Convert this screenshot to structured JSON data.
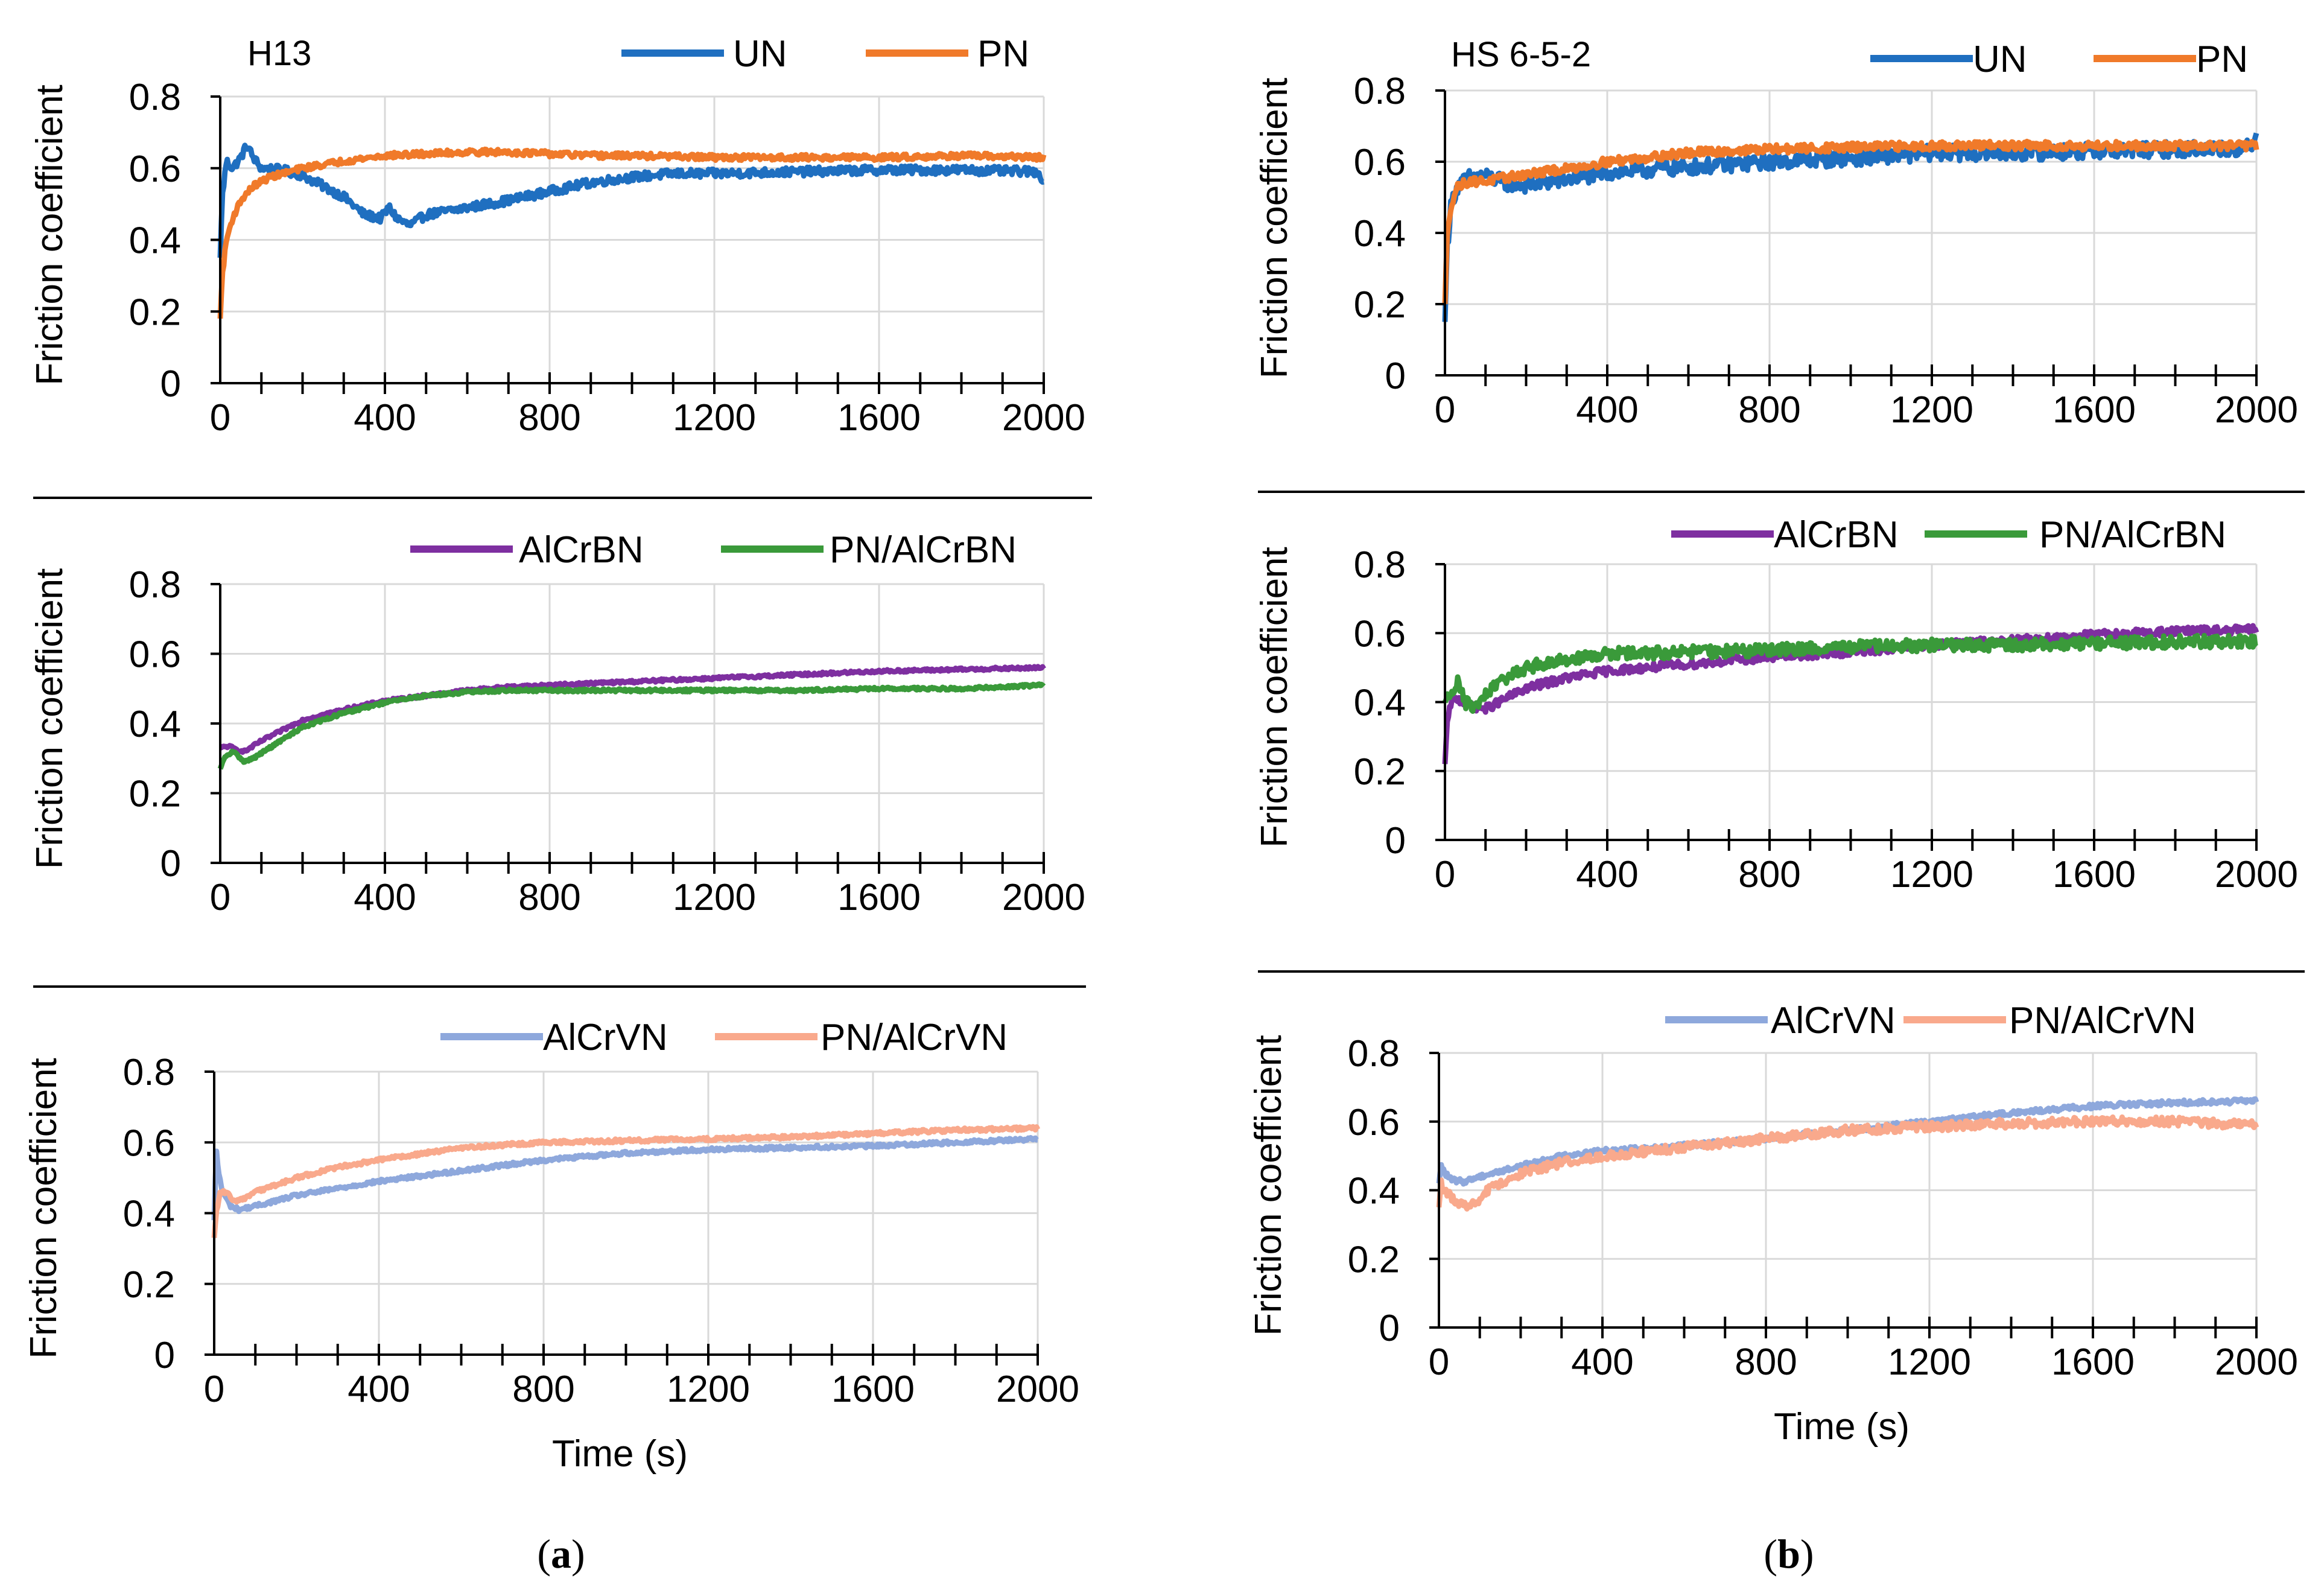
{
  "colors": {
    "UN": "#1f6fc0",
    "PN": "#f07a2a",
    "AlCrBN": "#7e2fa0",
    "PN/AlCrBN": "#3a9a3a",
    "AlCrVN": "#8ea8dc",
    "PN/AlCrVN": "#f9a98c",
    "grid": "#d9d9d9",
    "axis": "#000000"
  },
  "labels": {
    "panel_a_open": "(",
    "panel_a_letter": "a",
    "panel_a_close": ")",
    "panel_b_open": "(",
    "panel_b_letter": "b",
    "panel_b_close": ")"
  },
  "chart_data": [
    {
      "id": "a1",
      "type": "line",
      "title": "H13",
      "xlabel": "",
      "ylabel": "Friction coefficient",
      "xlim": [
        0,
        2000
      ],
      "ylim": [
        0,
        0.8
      ],
      "xticks": [
        "0",
        "400",
        "800",
        "1200",
        "1600",
        "2000"
      ],
      "yticks": [
        "0",
        "0.2",
        "0.4",
        "0.6",
        "0.8"
      ],
      "grid": true,
      "legend": "top-right",
      "series": [
        {
          "name": "UN",
          "noise": 0.012,
          "x": [
            0,
            5,
            15,
            30,
            50,
            65,
            80,
            100,
            150,
            200,
            250,
            300,
            350,
            390,
            410,
            430,
            460,
            500,
            600,
            700,
            800,
            900,
            1000,
            1100,
            1200,
            1400,
            1600,
            1800,
            1990,
            2000
          ],
          "y": [
            0.35,
            0.52,
            0.62,
            0.6,
            0.63,
            0.665,
            0.63,
            0.6,
            0.595,
            0.58,
            0.55,
            0.52,
            0.47,
            0.46,
            0.49,
            0.46,
            0.44,
            0.47,
            0.49,
            0.51,
            0.535,
            0.56,
            0.575,
            0.585,
            0.585,
            0.59,
            0.595,
            0.595,
            0.59,
            0.55
          ]
        },
        {
          "name": "PN",
          "noise": 0.008,
          "x": [
            0,
            5,
            15,
            30,
            50,
            80,
            120,
            200,
            300,
            400,
            500,
            600,
            700,
            800,
            900,
            1000,
            1200,
            1400,
            1600,
            1800,
            2000
          ],
          "y": [
            0.18,
            0.3,
            0.4,
            0.46,
            0.51,
            0.55,
            0.575,
            0.6,
            0.62,
            0.635,
            0.64,
            0.645,
            0.645,
            0.64,
            0.635,
            0.635,
            0.63,
            0.63,
            0.63,
            0.635,
            0.63
          ]
        }
      ]
    },
    {
      "id": "b1",
      "type": "line",
      "title": "HS 6-5-2",
      "xlabel": "",
      "ylabel": "Friction coefficient",
      "xlim": [
        0,
        2000
      ],
      "ylim": [
        0,
        0.8
      ],
      "xticks": [
        "0",
        "400",
        "800",
        "1200",
        "1600",
        "2000"
      ],
      "yticks": [
        "0",
        "0.2",
        "0.4",
        "0.6",
        "0.8"
      ],
      "grid": true,
      "legend": "top-right",
      "series": [
        {
          "name": "UN",
          "noise": 0.022,
          "x": [
            0,
            5,
            15,
            30,
            60,
            100,
            150,
            200,
            300,
            400,
            600,
            800,
            1000,
            1200,
            1400,
            1600,
            1800,
            1990,
            2000
          ],
          "y": [
            0.15,
            0.35,
            0.48,
            0.53,
            0.555,
            0.56,
            0.54,
            0.535,
            0.55,
            0.57,
            0.585,
            0.6,
            0.61,
            0.625,
            0.625,
            0.63,
            0.635,
            0.64,
            0.7
          ]
        },
        {
          "name": "PN",
          "noise": 0.012,
          "x": [
            0,
            5,
            15,
            30,
            60,
            100,
            200,
            300,
            400,
            600,
            800,
            1000,
            1200,
            1400,
            1600,
            1800,
            2000
          ],
          "y": [
            0.2,
            0.38,
            0.48,
            0.53,
            0.545,
            0.545,
            0.565,
            0.58,
            0.6,
            0.625,
            0.635,
            0.64,
            0.645,
            0.645,
            0.645,
            0.645,
            0.645
          ]
        }
      ]
    },
    {
      "id": "a2",
      "type": "line",
      "title": "",
      "xlabel": "",
      "ylabel": "Friction coefficient",
      "xlim": [
        0,
        2000
      ],
      "ylim": [
        0,
        0.8
      ],
      "xticks": [
        "0",
        "400",
        "800",
        "1200",
        "1600",
        "2000"
      ],
      "yticks": [
        "0",
        "0.2",
        "0.4",
        "0.6",
        "0.8"
      ],
      "grid": true,
      "legend": "top-right",
      "series": [
        {
          "name": "AlCrBN",
          "noise": 0.004,
          "x": [
            0,
            20,
            40,
            60,
            100,
            150,
            200,
            300,
            400,
            500,
            600,
            700,
            800,
            1000,
            1200,
            1400,
            1600,
            1800,
            2000
          ],
          "y": [
            0.33,
            0.335,
            0.325,
            0.32,
            0.35,
            0.38,
            0.41,
            0.44,
            0.465,
            0.48,
            0.495,
            0.505,
            0.51,
            0.52,
            0.53,
            0.54,
            0.55,
            0.555,
            0.56
          ]
        },
        {
          "name": "PN/AlCrBN",
          "noise": 0.004,
          "x": [
            0,
            10,
            30,
            60,
            80,
            120,
            200,
            300,
            400,
            500,
            600,
            700,
            800,
            1000,
            1200,
            1400,
            1600,
            1800,
            2000
          ],
          "y": [
            0.27,
            0.3,
            0.32,
            0.29,
            0.3,
            0.33,
            0.39,
            0.43,
            0.46,
            0.48,
            0.49,
            0.495,
            0.495,
            0.495,
            0.495,
            0.495,
            0.5,
            0.5,
            0.51
          ]
        }
      ]
    },
    {
      "id": "b2",
      "type": "line",
      "title": "",
      "xlabel": "",
      "ylabel": "Friction coefficient",
      "xlim": [
        0,
        2000
      ],
      "ylim": [
        0,
        0.8
      ],
      "xticks": [
        "0",
        "400",
        "800",
        "1200",
        "1600",
        "2000"
      ],
      "yticks": [
        "0",
        "0.2",
        "0.4",
        "0.6",
        "0.8"
      ],
      "grid": true,
      "legend": "top-right",
      "series": [
        {
          "name": "AlCrBN",
          "noise": 0.012,
          "x": [
            0,
            5,
            15,
            30,
            60,
            100,
            150,
            200,
            300,
            400,
            600,
            800,
            1000,
            1200,
            1400,
            1600,
            1800,
            2000
          ],
          "y": [
            0.22,
            0.33,
            0.4,
            0.41,
            0.39,
            0.38,
            0.41,
            0.44,
            0.47,
            0.49,
            0.51,
            0.53,
            0.545,
            0.565,
            0.58,
            0.595,
            0.605,
            0.61
          ]
        },
        {
          "name": "PN/AlCrBN",
          "noise": 0.018,
          "x": [
            0,
            10,
            30,
            50,
            70,
            100,
            150,
            200,
            300,
            400,
            600,
            800,
            1000,
            1200,
            1400,
            1600,
            1800,
            2000
          ],
          "y": [
            0.4,
            0.42,
            0.46,
            0.4,
            0.38,
            0.42,
            0.47,
            0.5,
            0.525,
            0.54,
            0.545,
            0.55,
            0.56,
            0.565,
            0.565,
            0.57,
            0.575,
            0.575
          ]
        }
      ]
    },
    {
      "id": "a3",
      "type": "line",
      "title": "",
      "xlabel": "Time (s)",
      "ylabel": "Friction coefficient",
      "xlim": [
        0,
        2000
      ],
      "ylim": [
        0,
        0.8
      ],
      "xticks": [
        "0",
        "400",
        "800",
        "1200",
        "1600",
        "2000"
      ],
      "yticks": [
        "0",
        "0.2",
        "0.4",
        "0.6",
        "0.8"
      ],
      "grid": true,
      "legend": "top-right",
      "series": [
        {
          "name": "AlCrVN",
          "noise": 0.005,
          "x": [
            0,
            5,
            10,
            20,
            40,
            60,
            100,
            200,
            300,
            400,
            600,
            800,
            1000,
            1200,
            1400,
            1600,
            1800,
            2000
          ],
          "y": [
            0.38,
            0.58,
            0.52,
            0.46,
            0.42,
            0.41,
            0.42,
            0.45,
            0.47,
            0.49,
            0.52,
            0.55,
            0.57,
            0.58,
            0.585,
            0.59,
            0.6,
            0.61
          ]
        },
        {
          "name": "PN/AlCrVN",
          "noise": 0.005,
          "x": [
            0,
            5,
            15,
            30,
            50,
            70,
            100,
            200,
            300,
            400,
            600,
            800,
            1000,
            1200,
            1400,
            1600,
            1800,
            2000
          ],
          "y": [
            0.33,
            0.4,
            0.46,
            0.46,
            0.43,
            0.44,
            0.46,
            0.5,
            0.53,
            0.55,
            0.585,
            0.6,
            0.605,
            0.61,
            0.615,
            0.625,
            0.635,
            0.64
          ]
        }
      ]
    },
    {
      "id": "b3",
      "type": "line",
      "title": "",
      "xlabel": "Time (s)",
      "ylabel": "Friction coefficient",
      "xlim": [
        0,
        2000
      ],
      "ylim": [
        0,
        0.8
      ],
      "xticks": [
        "0",
        "400",
        "800",
        "1200",
        "1600",
        "2000"
      ],
      "yticks": [
        "0",
        "0.2",
        "0.4",
        "0.6",
        "0.8"
      ],
      "grid": true,
      "legend": "top-right",
      "series": [
        {
          "name": "AlCrVN",
          "noise": 0.007,
          "x": [
            0,
            5,
            15,
            30,
            60,
            100,
            200,
            300,
            400,
            600,
            800,
            1000,
            1200,
            1400,
            1600,
            1800,
            2000
          ],
          "y": [
            0.42,
            0.47,
            0.45,
            0.43,
            0.425,
            0.44,
            0.47,
            0.5,
            0.515,
            0.53,
            0.55,
            0.575,
            0.6,
            0.625,
            0.645,
            0.655,
            0.66
          ]
        },
        {
          "name": "PN/AlCrVN",
          "noise": 0.013,
          "x": [
            0,
            5,
            15,
            30,
            50,
            70,
            90,
            120,
            200,
            300,
            400,
            600,
            800,
            1000,
            1200,
            1400,
            1600,
            1800,
            2000
          ],
          "y": [
            0.35,
            0.42,
            0.4,
            0.38,
            0.36,
            0.35,
            0.36,
            0.4,
            0.45,
            0.48,
            0.5,
            0.525,
            0.55,
            0.575,
            0.585,
            0.595,
            0.6,
            0.6,
            0.59
          ]
        }
      ]
    }
  ]
}
